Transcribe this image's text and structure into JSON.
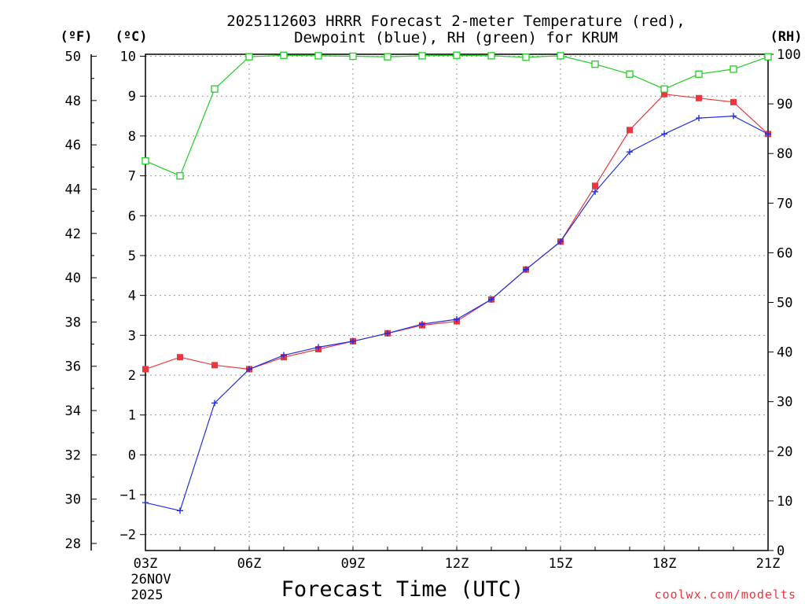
{
  "chart_data": {
    "type": "line",
    "title_lines": [
      "2025112603 HRRR Forecast 2-meter Temperature (red),",
      "Dewpoint (blue), RH (green) for KRUM"
    ],
    "xlabel": "Forecast Time (UTC)",
    "x_tick_labels": [
      "03Z",
      "06Z",
      "09Z",
      "12Z",
      "15Z",
      "18Z",
      "21Z"
    ],
    "x_tick_hours": [
      3,
      6,
      9,
      12,
      15,
      18,
      21
    ],
    "x_date_lines": [
      "26NOV",
      "2025"
    ],
    "xlim": [
      3,
      21
    ],
    "left_f_unit": "(ºF)",
    "left_c_unit": "(ºC)",
    "right_unit": "(RH)",
    "f_ticks": [
      28,
      30,
      32,
      34,
      36,
      38,
      40,
      42,
      44,
      46,
      48,
      50
    ],
    "c_ticks": [
      -2,
      -1,
      0,
      1,
      2,
      3,
      4,
      5,
      6,
      7,
      8,
      9,
      10
    ],
    "rh_ticks": [
      0,
      10,
      20,
      30,
      40,
      50,
      60,
      70,
      80,
      90,
      100
    ],
    "c_lim": [
      -2.4,
      10.05
    ],
    "rh_lim": [
      0,
      100
    ],
    "hours": [
      3,
      4,
      5,
      6,
      7,
      8,
      9,
      10,
      11,
      12,
      13,
      14,
      15,
      16,
      17,
      18,
      19,
      20,
      21
    ],
    "series": [
      {
        "name": "Temperature",
        "unit": "C",
        "color": "#e8383d",
        "marker": "filled-square",
        "values": [
          2.15,
          2.45,
          2.25,
          2.15,
          2.45,
          2.65,
          2.85,
          3.05,
          3.25,
          3.35,
          3.9,
          4.65,
          5.35,
          6.75,
          8.15,
          9.05,
          8.95,
          8.85,
          8.05
        ]
      },
      {
        "name": "Dewpoint",
        "unit": "C",
        "color": "#2030e0",
        "marker": "plus",
        "values": [
          -1.2,
          -1.4,
          1.3,
          2.15,
          2.5,
          2.7,
          2.85,
          3.05,
          3.28,
          3.4,
          3.9,
          4.65,
          5.35,
          6.6,
          7.6,
          8.05,
          8.45,
          8.5,
          8.05
        ]
      },
      {
        "name": "RH",
        "unit": "%",
        "color": "#22cc22",
        "marker": "open-square",
        "values": [
          78.5,
          75.5,
          93,
          99.5,
          99.8,
          99.7,
          99.6,
          99.5,
          99.7,
          99.8,
          99.7,
          99.4,
          99.7,
          98,
          96,
          93,
          96,
          97,
          99.5
        ]
      }
    ],
    "grid": true,
    "credit": "coolwx.com/modelts"
  }
}
